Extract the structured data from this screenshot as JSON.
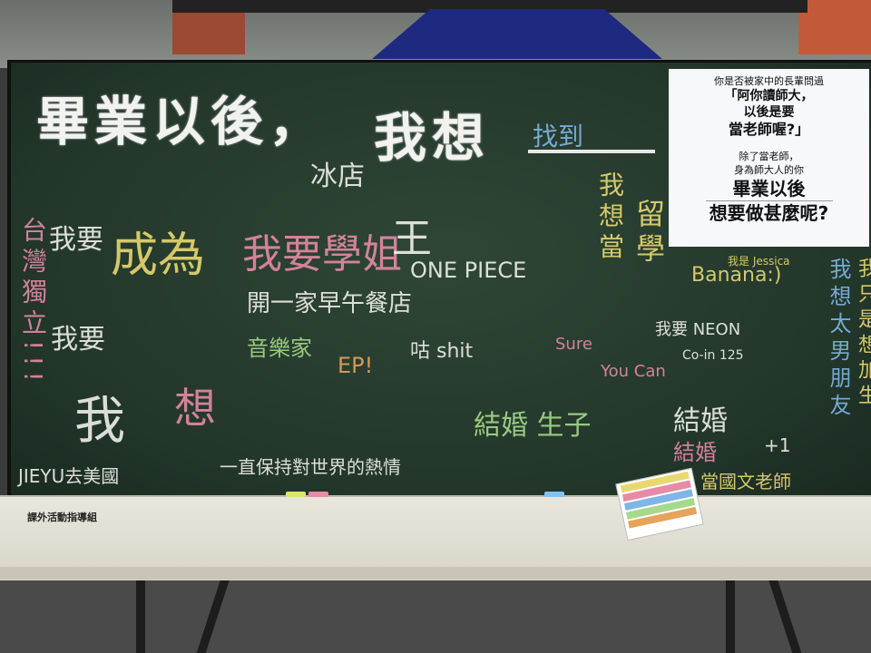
{
  "board": {
    "heading_left": "畢業以後，",
    "heading_right": "我想",
    "sign": {
      "line1": "你是否被家中的長輩問過",
      "line2": "「阿你讀師大，",
      "line3": "以後是要",
      "line4": "當老師喔?」",
      "line5": "除了當老師，",
      "line6": "身為師大人的你",
      "line7": "畢業以後",
      "line8": "想要做甚麼呢?"
    },
    "writings": {
      "w_taiwan": "台灣獨立!!!",
      "w_woyao": "我要",
      "w_woyao2": "我要",
      "w_jieyu": "JIEYU去美國",
      "w_chengwei": "成為",
      "w_one_piece": "ONE PIECE",
      "w_kai": "開一家早午餐店",
      "w_yinyue": "音樂家",
      "w_shit": "咕 shit",
      "w_wo": "我",
      "w_xiang": "想",
      "w_yizhi": "一直保持對世界的熱情",
      "w_jiehun": "結婚",
      "w_jiehun2": "結婚",
      "w_liuxue": "留學",
      "w_xiangdang": "我想當",
      "w_banana": "Banana:)",
      "w_jessica": "我是 Jessica",
      "w_sure": "Sure",
      "w_youcan": "You Can",
      "w_dangguowen": "當國文老師",
      "w_woyao_neon": "我要 NEON",
      "w_colin": "Co-in 125",
      "w_bingdian": "冰店",
      "w_yeyou": "結婚 生子",
      "w_plus1": "+1",
      "w_zhaodao": "找到",
      "w_right_v": "我想太男朋友",
      "w_right_v2": "我只是想加生",
      "w_dangwang": "王",
      "w_ep": "EP!",
      "w_xiaomei": "我要學姐"
    },
    "colors": {
      "board": "#22362a",
      "chalk_yellow": "#e8d870",
      "chalk_pink": "#e68aa6",
      "chalk_white": "#f0f0ea",
      "chalk_blue": "#7fb6e6",
      "chalk_green": "#a6d98a",
      "chalk_orange": "#e6a35a"
    }
  },
  "table": {
    "label": "課外活動指導組"
  }
}
